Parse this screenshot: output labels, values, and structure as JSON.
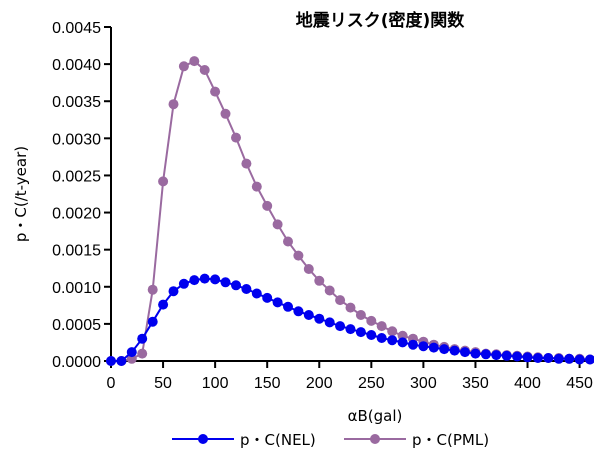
{
  "chart_data": {
    "type": "line",
    "title": "地震リスク(密度)関数",
    "xlabel": "αB(gal)",
    "ylabel": "p・C(/t-year)",
    "xlim": [
      0,
      460
    ],
    "ylim": [
      0,
      0.0045
    ],
    "x_ticks": [
      0,
      50,
      100,
      150,
      200,
      250,
      300,
      350,
      400,
      450
    ],
    "y_ticks": [
      0.0,
      0.0005,
      0.001,
      0.0015,
      0.002,
      0.0025,
      0.003,
      0.0035,
      0.004,
      0.0045
    ],
    "x_tick_labels": [
      "0",
      "50",
      "100",
      "150",
      "200",
      "250",
      "300",
      "350",
      "400",
      "450"
    ],
    "y_tick_labels": [
      "0.0000",
      "0.0005",
      "0.0010",
      "0.0015",
      "0.0020",
      "0.0025",
      "0.0030",
      "0.0035",
      "0.0040",
      "0.0045"
    ],
    "legend_position": "bottom",
    "grid": false,
    "x": [
      0,
      10,
      20,
      30,
      40,
      50,
      60,
      70,
      80,
      90,
      100,
      110,
      120,
      130,
      140,
      150,
      160,
      170,
      180,
      190,
      200,
      210,
      220,
      230,
      240,
      250,
      260,
      270,
      280,
      290,
      300,
      310,
      320,
      330,
      340,
      350,
      360,
      370,
      380,
      390,
      400,
      410,
      420,
      430,
      440,
      450,
      460
    ],
    "series": [
      {
        "name": "p・C(NEL)",
        "color": "#0000ee",
        "values": [
          0.0,
          0.0,
          0.00012,
          0.0003,
          0.00053,
          0.00076,
          0.00094,
          0.00104,
          0.00109,
          0.00111,
          0.0011,
          0.00106,
          0.00102,
          0.00097,
          0.00091,
          0.00085,
          0.00079,
          0.00073,
          0.00067,
          0.00062,
          0.00057,
          0.00052,
          0.00047,
          0.00043,
          0.00039,
          0.00035,
          0.00031,
          0.00028,
          0.00025,
          0.00022,
          0.0002,
          0.00018,
          0.00016,
          0.00014,
          0.00012,
          0.0001,
          9e-05,
          8e-05,
          7e-05,
          6e-05,
          5e-05,
          4e-05,
          4e-05,
          3e-05,
          3e-05,
          2e-05,
          2e-05
        ]
      },
      {
        "name": "p・C(PML)",
        "color": "#9a6aa0",
        "values": [
          0.0,
          0.0,
          3e-05,
          0.0001,
          0.00096,
          0.00242,
          0.00346,
          0.00397,
          0.00404,
          0.00392,
          0.00363,
          0.00333,
          0.00301,
          0.00266,
          0.00235,
          0.00209,
          0.00184,
          0.00161,
          0.00142,
          0.00124,
          0.00108,
          0.00095,
          0.00082,
          0.00072,
          0.00062,
          0.00054,
          0.00047,
          0.0004,
          0.00034,
          0.0003,
          0.00026,
          0.00022,
          0.00019,
          0.00016,
          0.00014,
          0.00012,
          0.0001,
          9e-05,
          8e-05,
          7e-05,
          6e-05,
          5e-05,
          4e-05,
          4e-05,
          3e-05,
          3e-05,
          2e-05
        ]
      }
    ]
  }
}
